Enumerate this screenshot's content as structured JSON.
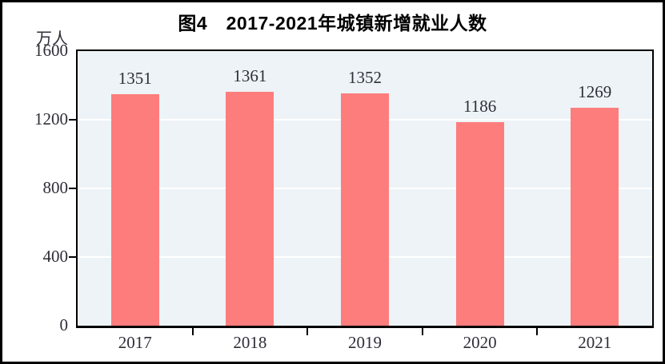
{
  "figure": {
    "title": "图4　2017-2021年城镇新增就业人数"
  },
  "chart_data": {
    "type": "bar",
    "title": "图4　2017-2021年城镇新增就业人数",
    "categories": [
      "2017",
      "2018",
      "2019",
      "2020",
      "2021"
    ],
    "values": [
      1351,
      1361,
      1352,
      1186,
      1269
    ],
    "value_labels": [
      "1351",
      "1361",
      "1352",
      "1186",
      "1269"
    ],
    "xlabel": "",
    "ylabel": "万人",
    "ylim": [
      0,
      1600
    ],
    "yticks": [
      0,
      400,
      800,
      1200,
      1600
    ],
    "grid": true,
    "legend": "none",
    "colors": {
      "bar": "#FD7D7D",
      "plot_background": "#EDF3F6",
      "gridline": "#FFFFFF",
      "axis": "#000000",
      "label_text": "#2E2E38",
      "title_text": "#000000"
    }
  }
}
